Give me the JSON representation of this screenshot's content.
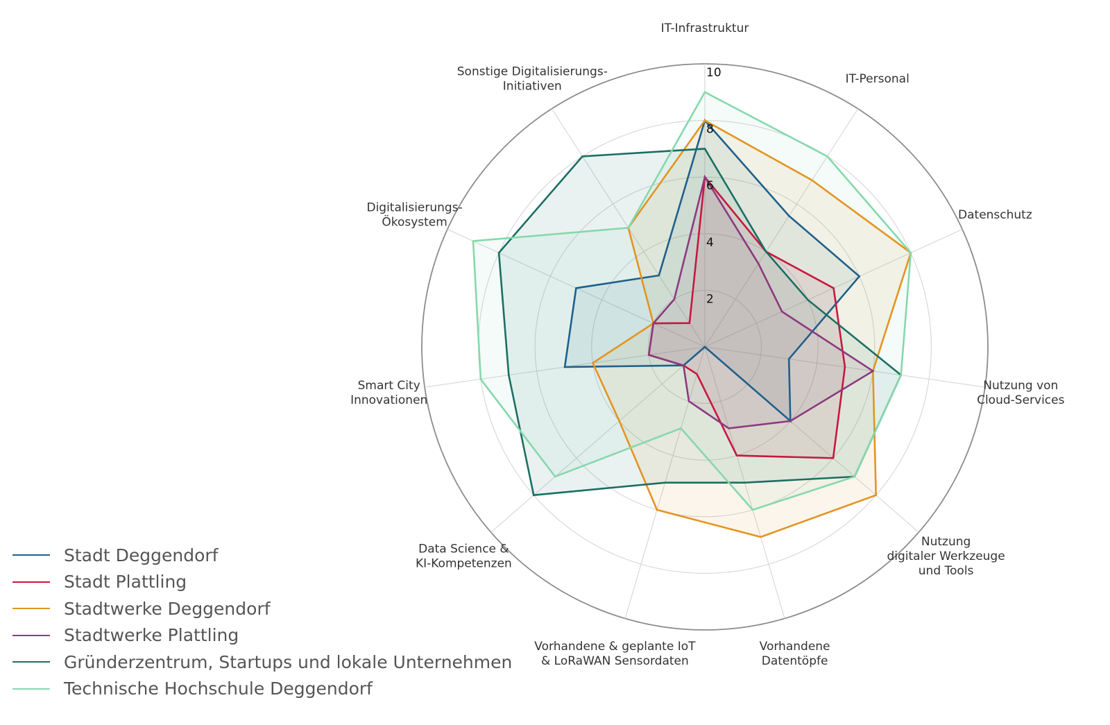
{
  "chart_data": {
    "type": "radar",
    "axes": [
      "IT-Infrastruktur",
      "IT-Personal",
      "Datenschutz",
      "Nutzung von Cloud-Services",
      "Nutzung digitaler Werkzeuge und Tools",
      "Vorhandene Datentöpfe",
      "Vorhandene & geplante IoT & LoRaWAN Sensordaten",
      "Data Science & KI-Kompetenzen",
      "Smart City Innovationen",
      "Digitalisierungs-Ökosystem",
      "Sonstige Digitalisierungs-Initiativen"
    ],
    "axis_label_lines": [
      [
        "IT-Infrastruktur"
      ],
      [
        "IT-Personal"
      ],
      [
        "Datenschutz"
      ],
      [
        "Nutzung von",
        "Cloud-Services"
      ],
      [
        "Nutzung",
        "digitaler Werkzeuge",
        "und Tools"
      ],
      [
        "Vorhandene",
        "Datentöpfe"
      ],
      [
        "Vorhandene & geplante IoT",
        "& LoRaWAN Sensordaten"
      ],
      [
        "Data Science &",
        "KI-Kompetenzen"
      ],
      [
        "Smart City",
        "Innovationen"
      ],
      [
        "Digitalisierungs-",
        "Ökosystem"
      ],
      [
        "Sonstige Digitalisierungs-",
        "Initiativen"
      ]
    ],
    "rmax": 10,
    "ticks": [
      "2",
      "4",
      "6",
      "8",
      "10"
    ],
    "tick_values": [
      2,
      4,
      6,
      8,
      10
    ],
    "series": [
      {
        "name": "Stadt Deggendorf",
        "color": "#1f5f8b",
        "values": [
          8,
          5.5,
          6,
          3,
          4,
          0,
          0,
          1,
          5,
          5,
          3
        ]
      },
      {
        "name": "Stadt Plattling",
        "color": "#c8173f",
        "values": [
          6,
          4,
          5,
          5,
          6,
          4,
          1,
          1,
          2,
          2,
          1
        ]
      },
      {
        "name": "Stadtwerke Deggendorf",
        "color": "#e39421",
        "values": [
          8,
          7,
          8,
          6,
          8,
          7,
          6,
          4,
          4,
          2,
          5
        ]
      },
      {
        "name": "Stadtwerke Plattling",
        "color": "#8b3a7e",
        "values": [
          6,
          3.5,
          3,
          6,
          4,
          3,
          2,
          1,
          2,
          2,
          2
        ]
      },
      {
        "name": "Gründerzentrum, Startups und lokale Unternehmen",
        "color": "#1b6f63",
        "values": [
          7,
          4,
          4,
          7,
          7,
          5,
          5,
          8,
          7,
          8,
          8
        ]
      },
      {
        "name": "Technische Hochschule Deggendorf",
        "color": "#86d8ac",
        "values": [
          9,
          8,
          8,
          7,
          7,
          6,
          3,
          7,
          8,
          9,
          5
        ]
      }
    ],
    "grid": true,
    "legend": "bottom-left"
  }
}
